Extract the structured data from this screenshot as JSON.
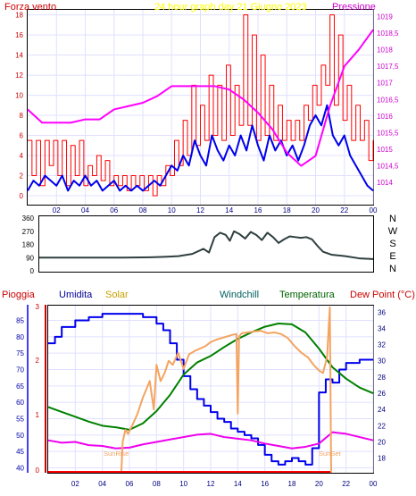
{
  "chart_data": [
    {
      "type": "line",
      "title": "24 hour graph day   21 Giugno 2023",
      "left_axis_label": "Forza vento",
      "right_axis_label": "Pressione",
      "x_tick_labels": [
        "02",
        "04",
        "06",
        "08",
        "10",
        "12",
        "14",
        "16",
        "18",
        "20",
        "22",
        "00"
      ],
      "left_ticks": [
        "0",
        "2",
        "4",
        "6",
        "8",
        "10",
        "12",
        "14",
        "16",
        "18"
      ],
      "right_ticks": [
        "1014",
        "1014,5",
        "1015",
        "1015,5",
        "1016",
        "1016,5",
        "1017",
        "1017,5",
        "1018",
        "1018,5",
        "1019"
      ],
      "x_range_hours": [
        0,
        24
      ],
      "left_ylim": [
        0,
        18.5
      ],
      "right_ylim": [
        1013.6,
        1019.2
      ],
      "series": [
        {
          "color": "#ff0000",
          "x": [
            0.0,
            0.3,
            0.6,
            0.9,
            1.2,
            1.5,
            1.8,
            2.1,
            2.4,
            2.7,
            3.0,
            3.3,
            3.6,
            3.9,
            4.2,
            4.5,
            4.8,
            5.1,
            5.4,
            5.7,
            6.0,
            6.3,
            6.6,
            6.9,
            7.2,
            7.5,
            7.8,
            8.1,
            8.4,
            8.7,
            9.0,
            9.3,
            9.6,
            9.9,
            10.2,
            10.5,
            10.8,
            11.1,
            11.4,
            11.7,
            12.0,
            12.3,
            12.6,
            12.9,
            13.2,
            13.5,
            13.8,
            14.1,
            14.4,
            14.7,
            15.0,
            15.3,
            15.6,
            15.9,
            16.2,
            16.5,
            16.8,
            17.1,
            17.4,
            17.7,
            18.0,
            18.3,
            18.6,
            18.9,
            19.2,
            19.5,
            19.8,
            20.1,
            20.4,
            20.7,
            21.0,
            21.3,
            21.6,
            21.9,
            22.2,
            22.5,
            22.8,
            23.1,
            23.4,
            23.7,
            24.0
          ],
          "y": [
            5.5,
            2,
            5.5,
            1,
            5.5,
            3,
            5.5,
            2,
            5.5,
            1,
            5,
            2,
            5.5,
            1,
            3,
            2,
            4,
            1.5,
            3.5,
            1,
            2,
            1,
            2,
            0.5,
            2,
            1,
            2,
            0.5,
            2,
            0,
            2,
            1,
            3,
            2,
            5.5,
            3,
            7.5,
            4,
            11,
            5,
            9,
            5.5,
            12,
            6,
            11,
            5.5,
            13,
            6,
            11,
            7,
            18,
            7,
            16,
            5.5,
            14,
            6,
            11,
            5.5,
            9,
            5.5,
            7.5,
            5.5,
            7.5,
            5.5,
            9,
            7.5,
            11,
            9,
            13,
            11,
            18,
            9,
            16,
            7.5,
            11,
            5.5,
            9,
            5.5,
            7.5,
            3.5,
            5.5
          ]
        },
        {
          "color": "#0000ee",
          "x": [
            0.0,
            0.4,
            0.8,
            1.2,
            1.6,
            2.0,
            2.4,
            2.8,
            3.2,
            3.6,
            4.0,
            4.4,
            4.8,
            5.2,
            5.6,
            6.0,
            6.4,
            6.8,
            7.2,
            7.6,
            8.0,
            8.4,
            8.8,
            9.2,
            9.6,
            10.0,
            10.4,
            10.8,
            11.2,
            11.6,
            12.0,
            12.4,
            12.8,
            13.2,
            13.6,
            14.0,
            14.4,
            14.8,
            15.2,
            15.6,
            16.0,
            16.4,
            16.8,
            17.2,
            17.6,
            18.0,
            18.4,
            18.8,
            19.2,
            19.6,
            20.0,
            20.4,
            20.8,
            21.2,
            21.6,
            22.0,
            22.4,
            22.8,
            23.2,
            23.6,
            24.0
          ],
          "y": [
            0.5,
            1.5,
            1,
            2,
            1.5,
            1,
            2,
            0.5,
            1.5,
            1,
            2,
            1,
            1.5,
            0.5,
            1,
            1.5,
            0.5,
            1,
            0.5,
            1,
            0.5,
            1,
            1.5,
            1,
            2,
            3,
            2.5,
            4,
            3,
            5.5,
            4,
            3,
            6,
            4.5,
            3.5,
            5,
            4,
            6,
            4.5,
            7,
            5,
            3.5,
            6,
            4.5,
            5.5,
            4,
            5,
            3.5,
            5,
            7,
            8,
            7,
            9,
            6,
            5,
            6,
            4,
            3,
            2,
            1,
            0.5
          ]
        },
        {
          "color": "#ff00ff",
          "axis": "right",
          "x": [
            0,
            1,
            2,
            3,
            4,
            5,
            6,
            7,
            8,
            9,
            10,
            11,
            12,
            13,
            14,
            15,
            16,
            17,
            18,
            19,
            20,
            21,
            22,
            23,
            24
          ],
          "y": [
            1016.2,
            1015.8,
            1015.8,
            1015.8,
            1015.9,
            1015.9,
            1016.2,
            1016.3,
            1016.4,
            1016.6,
            1016.9,
            1016.9,
            1016.9,
            1016.9,
            1016.8,
            1016.5,
            1016.1,
            1015.6,
            1014.9,
            1014.5,
            1014.8,
            1016.3,
            1017.5,
            1018.0,
            1018.6
          ]
        }
      ]
    },
    {
      "type": "line",
      "title": "",
      "direction_labels": [
        "N",
        "W",
        "S",
        "E",
        "N"
      ],
      "left_ticks": [
        "0",
        "90",
        "180",
        "270",
        "360"
      ],
      "x_range_hours": [
        0,
        24
      ],
      "ylim": [
        0,
        360
      ],
      "series": [
        {
          "color": "#2f3f3f",
          "x": [
            0,
            2,
            4,
            6,
            8,
            9,
            10,
            11,
            11.8,
            12.2,
            12.6,
            13.0,
            13.4,
            13.7,
            14.0,
            14.4,
            14.8,
            15.2,
            15.6,
            16.0,
            16.4,
            16.8,
            17.2,
            17.6,
            18.0,
            18.4,
            18.8,
            19.2,
            19.6,
            20.0,
            20.4,
            21,
            22,
            23,
            24
          ],
          "y": [
            90,
            90,
            90,
            90,
            92,
            95,
            100,
            115,
            150,
            125,
            230,
            260,
            245,
            205,
            270,
            250,
            220,
            265,
            245,
            210,
            260,
            230,
            190,
            215,
            235,
            230,
            225,
            230,
            215,
            170,
            130,
            110,
            100,
            85,
            80
          ]
        }
      ]
    },
    {
      "type": "line",
      "title": "",
      "headers": {
        "pioggia": "Pioggia",
        "umidita": "Umidita",
        "solar": "Solar",
        "windchill": "Windchill",
        "temperatura": "Temperatura",
        "dewpoint": "Dew Point (°C)"
      },
      "annotations": [
        "SunRise",
        "SunSet"
      ],
      "x_tick_labels": [
        "02",
        "04",
        "06",
        "08",
        "10",
        "12",
        "14",
        "16",
        "18",
        "20",
        "22",
        "00"
      ],
      "humidity_ticks": [
        "40",
        "45",
        "50",
        "55",
        "60",
        "65",
        "70",
        "75",
        "80",
        "85"
      ],
      "temp_ticks": [
        "18",
        "20",
        "22",
        "24",
        "26",
        "28",
        "30",
        "32",
        "34",
        "36"
      ],
      "rain_ticks": [
        "0",
        "1",
        "2",
        "3"
      ],
      "humidity_ylim": [
        38.5,
        89.5
      ],
      "temp_ylim": [
        16.2,
        36.8
      ],
      "series": [
        {
          "color": "#0000ee",
          "axis": "humidity",
          "x": [
            0,
            0.5,
            1,
            2,
            3,
            4,
            5,
            6,
            7,
            8,
            8.5,
            9,
            9.5,
            10,
            10.5,
            11,
            11.5,
            12,
            12.5,
            13,
            13.5,
            14,
            14.5,
            15,
            15.5,
            16,
            16.5,
            17,
            17.5,
            18,
            18.5,
            19,
            19.5,
            20,
            20.5,
            21,
            21.5,
            22,
            23,
            24
          ],
          "y": [
            78,
            80,
            83,
            85,
            86,
            87,
            87,
            87,
            86,
            84,
            82,
            78,
            73,
            68,
            64,
            61,
            59,
            57,
            55,
            54,
            52,
            51,
            50,
            49,
            47,
            44,
            42,
            41,
            42,
            43,
            42,
            41,
            46,
            63,
            67,
            66,
            70,
            72,
            73,
            73
          ]
        },
        {
          "color": "#008000",
          "axis": "temp",
          "x": [
            0,
            1,
            2,
            3,
            4,
            5,
            6,
            7,
            8,
            9,
            10,
            11,
            12,
            13,
            14,
            15,
            16,
            17,
            18,
            19,
            20,
            21,
            22,
            23,
            24
          ],
          "y": [
            24.3,
            23.7,
            23.1,
            22.5,
            22.0,
            21.8,
            21.5,
            22.3,
            23.8,
            25.8,
            28.3,
            29.8,
            30.6,
            31.7,
            32.7,
            33.5,
            34.2,
            34.6,
            34.5,
            33.5,
            31.5,
            29.2,
            27.8,
            26.7,
            26.0
          ]
        },
        {
          "color": "#ee00ee",
          "axis": "temp",
          "x": [
            0,
            1,
            2,
            3,
            4,
            5,
            6,
            7,
            8,
            9,
            10,
            11,
            12,
            13,
            14,
            15,
            16,
            17,
            18,
            19,
            20,
            21,
            22,
            23,
            24
          ],
          "y": [
            20.2,
            19.9,
            20.0,
            19.6,
            19.5,
            19.2,
            19.3,
            19.7,
            20.0,
            20.3,
            20.6,
            20.9,
            21.0,
            20.6,
            20.4,
            20.2,
            19.8,
            19.5,
            19.2,
            19.4,
            19.8,
            21.2,
            21.0,
            20.6,
            20.2
          ]
        },
        {
          "color": "#f4a460",
          "axis": "temp",
          "x": [
            5.4,
            5.5,
            5.7,
            5.9,
            6.2,
            6.6,
            7.0,
            7.5,
            7.8,
            8.0,
            8.3,
            8.6,
            8.9,
            9.2,
            9.6,
            10.0,
            10.4,
            10.8,
            11.2,
            11.6,
            12.0,
            12.4,
            12.8,
            13.2,
            13.6,
            13.9,
            14.0,
            14.1,
            14.3,
            14.7,
            15.2,
            15.7,
            16.2,
            16.7,
            17.2,
            17.7,
            18.2,
            18.7,
            19.2,
            19.6,
            20.0,
            20.3,
            20.6,
            20.8,
            20.9
          ],
          "y": [
            16.2,
            20.0,
            21.5,
            21.0,
            22.0,
            23.5,
            25.5,
            27.5,
            24.0,
            29.5,
            27.5,
            28.5,
            30.0,
            29.5,
            31.0,
            29.0,
            30.8,
            31.2,
            31.5,
            31.8,
            32.3,
            32.6,
            32.8,
            33.0,
            33.2,
            33.3,
            23.5,
            33.0,
            33.4,
            33.5,
            33.6,
            33.7,
            33.4,
            33.5,
            33.3,
            32.8,
            31.8,
            31.0,
            30.4,
            29.5,
            28.8,
            28.5,
            30.5,
            36.6,
            16.2
          ]
        }
      ]
    }
  ]
}
